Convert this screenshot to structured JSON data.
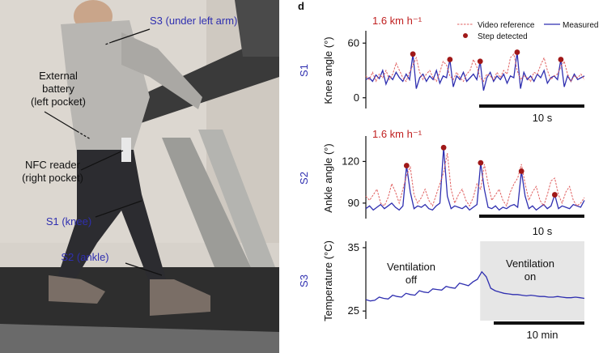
{
  "panel_letter": "d",
  "photo": {
    "labels": {
      "s3": "S3 (under left arm)",
      "battery_1": "External",
      "battery_2": "battery",
      "battery_3": "(left pocket)",
      "nfc_1": "NFC reader",
      "nfc_2": "(right pocket)",
      "s1": "S1 (knee)",
      "s2": "S2 (ankle)"
    }
  },
  "colors": {
    "measured": "#2f2fb0",
    "reference": "#e06060",
    "step": "#a01818",
    "label": "#2f2fb0",
    "speed": "#c02020",
    "shade": "#e6e6e6"
  },
  "chart_data": [
    {
      "type": "line",
      "id": "S1",
      "sensor": "S1",
      "ylabel": "Knee angle (°)",
      "ylim": [
        -10,
        70
      ],
      "yticks": [
        0,
        60
      ],
      "speed": "1.6 km h⁻¹",
      "legend": {
        "reference": "Video reference",
        "measured": "Measured",
        "step": "Step detected"
      },
      "scale_bar": "10 s",
      "series": [
        {
          "name": "Measured",
          "y": [
            20,
            22,
            18,
            25,
            21,
            30,
            15,
            24,
            20,
            28,
            22,
            18,
            26,
            20,
            48,
            10,
            22,
            26,
            18,
            24,
            20,
            30,
            16,
            24,
            22,
            42,
            12,
            24,
            20,
            28,
            18,
            22,
            26,
            20,
            40,
            8,
            22,
            28,
            18,
            24,
            20,
            26,
            16,
            24,
            22,
            50,
            10,
            28,
            20,
            24,
            18,
            26,
            22,
            30,
            16,
            22,
            24,
            20,
            42,
            12,
            24,
            18,
            26,
            20,
            22,
            24
          ]
        },
        {
          "name": "Video reference",
          "y": [
            24,
            20,
            28,
            18,
            26,
            22,
            30,
            20,
            26,
            38,
            30,
            22,
            18,
            28,
            36,
            44,
            28,
            20,
            26,
            30,
            22,
            18,
            28,
            40,
            36,
            24,
            20,
            28,
            22,
            18,
            26,
            30,
            42,
            34,
            22,
            18,
            26,
            24,
            20,
            28,
            22,
            30,
            26,
            44,
            48,
            30,
            20,
            24,
            22,
            18,
            28,
            26,
            36,
            44,
            30,
            20,
            24,
            26,
            34,
            40,
            26,
            18,
            24,
            22,
            26,
            20
          ]
        }
      ],
      "steps": [
        {
          "i": 14,
          "y": 48
        },
        {
          "i": 25,
          "y": 42
        },
        {
          "i": 34,
          "y": 40
        },
        {
          "i": 45,
          "y": 50
        },
        {
          "i": 58,
          "y": 42
        }
      ]
    },
    {
      "type": "line",
      "id": "S2",
      "sensor": "S2",
      "ylabel": "Ankle angle (°)",
      "ylim": [
        80,
        136
      ],
      "yticks": [
        90,
        120
      ],
      "speed": "1.6 km h⁻¹",
      "scale_bar": "10 s",
      "series": [
        {
          "name": "Measured",
          "y": [
            86,
            88,
            85,
            87,
            89,
            86,
            88,
            90,
            87,
            85,
            88,
            117,
            98,
            86,
            88,
            87,
            89,
            86,
            85,
            88,
            90,
            130,
            95,
            86,
            88,
            87,
            86,
            88,
            85,
            87,
            89,
            119,
            100,
            87,
            86,
            88,
            85,
            87,
            86,
            88,
            89,
            87,
            113,
            95,
            86,
            88,
            85,
            87,
            89,
            86,
            88,
            96,
            86,
            88,
            87,
            86,
            89,
            88,
            87,
            92
          ]
        },
        {
          "name": "Video reference",
          "y": [
            95,
            92,
            96,
            100,
            90,
            88,
            94,
            104,
            98,
            90,
            100,
            110,
            116,
            96,
            90,
            94,
            100,
            92,
            88,
            96,
            104,
            112,
            126,
            100,
            90,
            96,
            100,
            92,
            88,
            94,
            104,
            100,
            118,
            104,
            92,
            96,
            100,
            92,
            88,
            98,
            104,
            108,
            118,
            104,
            92,
            98,
            102,
            92,
            88,
            96,
            106,
            108,
            96,
            90,
            98,
            102,
            92,
            88,
            90,
            94
          ]
        }
      ],
      "steps": [
        {
          "i": 11,
          "y": 117
        },
        {
          "i": 21,
          "y": 130
        },
        {
          "i": 31,
          "y": 119
        },
        {
          "i": 42,
          "y": 113
        },
        {
          "i": 51,
          "y": 96
        }
      ]
    },
    {
      "type": "line",
      "id": "S3",
      "sensor": "S3",
      "ylabel": "Temperature (°C)",
      "ylim": [
        24,
        35.5
      ],
      "yticks": [
        25,
        35
      ],
      "annotations": {
        "off_1": "Ventilation",
        "off_2": "off",
        "on_1": "Ventilation",
        "on_2": "on"
      },
      "scale_bar": "10 min",
      "series": [
        {
          "name": "Temperature",
          "y": [
            26.8,
            26.6,
            26.7,
            27.2,
            27.0,
            26.9,
            27.5,
            27.3,
            27.2,
            27.8,
            27.6,
            27.5,
            28.2,
            28.0,
            27.9,
            28.5,
            28.4,
            28.3,
            28.9,
            28.7,
            28.6,
            29.4,
            29.2,
            29.0,
            29.6,
            30.0,
            31.2,
            30.4,
            28.6,
            28.2,
            28.0,
            27.8,
            27.7,
            27.6,
            27.6,
            27.5,
            27.4,
            27.5,
            27.4,
            27.3,
            27.3,
            27.2,
            27.2,
            27.3,
            27.2,
            27.1,
            27.1,
            27.2,
            27.1,
            27.0
          ]
        }
      ],
      "shade_from_index": 26
    }
  ]
}
